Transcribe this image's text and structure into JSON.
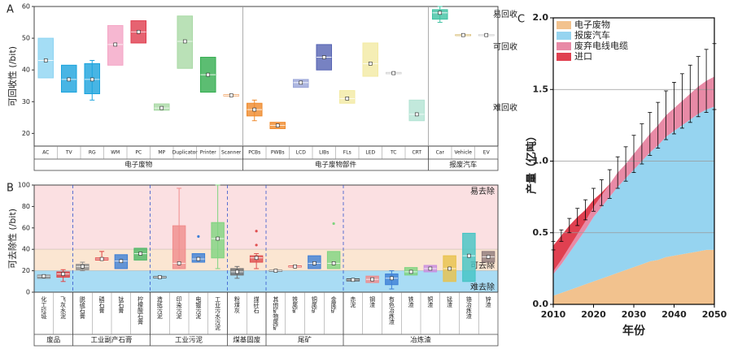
{
  "chart_data": [
    {
      "type": "box",
      "panel": "A",
      "y_label": "可回收性 (/bit)",
      "ylim": [
        16,
        60
      ],
      "yticks": [
        20,
        30,
        40,
        50,
        60
      ],
      "zone_labels": [
        "易回收",
        "可回收",
        "难回收"
      ],
      "groups": [
        {
          "name": "电子废物",
          "boxes": [
            {
              "label": "AC",
              "q1": 37.5,
              "q3": 50,
              "median": 43,
              "color": "#8dd4f2"
            },
            {
              "label": "TV",
              "q1": 33,
              "q3": 41.5,
              "median": 37,
              "color": "#1aa3dd"
            },
            {
              "label": "RG",
              "q1": 32.5,
              "q3": 42,
              "median": 37,
              "whislo": 30.5,
              "whishi": 43,
              "color": "#1aa3dd"
            },
            {
              "label": "WM",
              "q1": 41.5,
              "q3": 54,
              "median": 48,
              "color": "#f4a5c6"
            },
            {
              "label": "PC",
              "q1": 48.5,
              "q3": 55.5,
              "median": 52,
              "color": "#e03c4e"
            },
            {
              "label": "MP",
              "q1": 27.3,
              "q3": 29.3,
              "median": 28,
              "color": "#a9d9a5"
            },
            {
              "label": "Duplicator",
              "q1": 40.5,
              "q3": 57,
              "median": 49,
              "color": "#a9d9a5"
            },
            {
              "label": "Printer",
              "q1": 33,
              "q3": 44,
              "median": 38.5,
              "color": "#33ad4f"
            },
            {
              "label": "Scanner",
              "q1": 31.8,
              "q3": 32.2,
              "median": 32,
              "color": "#f2a76a"
            }
          ]
        },
        {
          "name": "电子废物部件",
          "boxes": [
            {
              "label": "PCBs",
              "q1": 25.5,
              "q3": 29.5,
              "median": 27.5,
              "whislo": 24,
              "whishi": 30.5,
              "color": "#ef8a2c"
            },
            {
              "label": "PWBs",
              "q1": 21.5,
              "q3": 23.5,
              "median": 22.5,
              "color": "#ef8a2c"
            },
            {
              "label": "LCD",
              "q1": 34.5,
              "q3": 37,
              "median": 36,
              "color": "#9aa5d8"
            },
            {
              "label": "LIBs",
              "q1": 40,
              "q3": 48,
              "median": 44,
              "color": "#5563b3"
            },
            {
              "label": "FLs",
              "q1": 29.5,
              "q3": 33.5,
              "median": 31,
              "color": "#f3eaa2"
            },
            {
              "label": "LED",
              "q1": 38,
              "q3": 48.5,
              "median": 42,
              "color": "#f3eaa2"
            },
            {
              "label": "TC",
              "q1": 38.8,
              "q3": 39.2,
              "median": 39,
              "color": "#cccccc"
            },
            {
              "label": "CRT",
              "q1": 24,
              "q3": 30.5,
              "median": 26,
              "color": "#b3e3d3"
            }
          ]
        },
        {
          "name": "报废汽车",
          "boxes": [
            {
              "label": "Car",
              "q1": 56,
              "q3": 59,
              "median": 58,
              "whislo": 55,
              "whishi": 60,
              "color": "#3ec2a2"
            },
            {
              "label": "Vehicle",
              "q1": 50.9,
              "q3": 51.1,
              "median": 51,
              "color": "#c9a13d"
            },
            {
              "label": "EV",
              "q1": 50.9,
              "q3": 51.1,
              "median": 51,
              "color": "#bbbbbb"
            }
          ]
        }
      ]
    },
    {
      "type": "box",
      "panel": "B",
      "y_label": "可去除性 (/bit)",
      "ylim": [
        0,
        100
      ],
      "yticks": [
        0,
        20,
        40,
        60,
        80,
        100
      ],
      "zones": [
        {
          "label": "易去除",
          "from": 40,
          "to": 100,
          "color": "#fbe0e2"
        },
        {
          "label": "可去除",
          "from": 20,
          "to": 40,
          "color": "#fbe6d2"
        },
        {
          "label": "难去除",
          "from": 0,
          "to": 20,
          "color": "#a9dcf4"
        }
      ],
      "groups": [
        {
          "name": "废品",
          "boxes": [
            {
              "label": "化工垃圾",
              "q1": 13,
              "q3": 16,
              "median": 15,
              "color": "#8c8c8c"
            },
            {
              "label": "飞灰水泥",
              "q1": 14,
              "q3": 19,
              "median": 17,
              "whislo": 10,
              "whishi": 21,
              "color": "#e04444"
            }
          ]
        },
        {
          "name": "工业副产石膏",
          "boxes": [
            {
              "label": "脱硫石膏",
              "q1": 21,
              "q3": 26,
              "median": 24,
              "whislo": 20,
              "whishi": 28,
              "color": "#8c8c8c"
            },
            {
              "label": "磷石膏",
              "q1": 30,
              "q3": 32,
              "median": 31,
              "whislo": 30,
              "whishi": 38,
              "color": "#e04444"
            },
            {
              "label": "钛石膏",
              "q1": 22,
              "q3": 35,
              "median": 29,
              "color": "#3d7fd6"
            },
            {
              "label": "柠檬酸石膏",
              "q1": 30,
              "q3": 41,
              "median": 36,
              "color": "#4cb865"
            }
          ]
        },
        {
          "name": "工业污泥",
          "boxes": [
            {
              "label": "造纸污泥",
              "q1": 13.5,
              "q3": 14.5,
              "median": 14,
              "color": "#404040"
            },
            {
              "label": "印染污泥",
              "q1": 22,
              "q3": 62,
              "median": 27,
              "whislo": 22,
              "whishi": 97,
              "color": "#f08c8c"
            },
            {
              "label": "电镀污泥",
              "q1": 28,
              "q3": 36,
              "median": 31,
              "outliers": [
                52
              ],
              "color": "#3d7fd6"
            },
            {
              "label": "工业污水污泥",
              "q1": 32,
              "q3": 65,
              "median": 50,
              "whislo": 22,
              "whishi": 100,
              "color": "#7fd47f"
            }
          ]
        },
        {
          "name": "煤基固废",
          "boxes": [
            {
              "label": "粉煤灰",
              "q1": 16,
              "q3": 22,
              "median": 19,
              "whislo": 13,
              "whishi": 24,
              "color": "#707070"
            },
            {
              "label": "煤矸石",
              "q1": 28,
              "q3": 34,
              "median": 32,
              "whislo": 22,
              "whishi": 36,
              "outliers": [
                44,
                57
              ],
              "color": "#e05050"
            }
          ]
        },
        {
          "name": "尾矿",
          "boxes": [
            {
              "label": "其他矿物尾矿",
              "q1": 19.5,
              "q3": 20.5,
              "median": 20,
              "color": "#707070"
            },
            {
              "label": "铁尾矿",
              "q1": 23.5,
              "q3": 24.5,
              "median": 24,
              "color": "#e04444"
            },
            {
              "label": "铜尾矿",
              "q1": 22,
              "q3": 34,
              "median": 27,
              "color": "#3d7fd6"
            },
            {
              "label": "金尾矿",
              "q1": 22,
              "q3": 38,
              "median": 27,
              "outliers": [
                64
              ],
              "color": "#7fd47f"
            }
          ]
        },
        {
          "name": "冶炼渣",
          "boxes": [
            {
              "label": "赤泥",
              "q1": 10.5,
              "q3": 12.5,
              "median": 11.5,
              "color": "#505050"
            },
            {
              "label": "钢渣",
              "q1": 9,
              "q3": 15,
              "median": 12,
              "color": "#f08c8c"
            },
            {
              "label": "有色冶炼渣",
              "q1": 7,
              "q3": 17,
              "median": 13,
              "whislo": 3,
              "whishi": 20,
              "color": "#3d7fd6"
            },
            {
              "label": "铁渣",
              "q1": 16,
              "q3": 23,
              "median": 19,
              "color": "#7fd47f"
            },
            {
              "label": "铜渣",
              "q1": 19,
              "q3": 25,
              "median": 22,
              "color": "#c98de0"
            },
            {
              "label": "锰渣",
              "q1": 10,
              "q3": 34,
              "median": 22,
              "color": "#e8c24a"
            },
            {
              "label": "铬冶炼渣",
              "q1": 10,
              "q3": 55,
              "median": 34,
              "color": "#42c4c4"
            },
            {
              "label": "锌渣",
              "q1": 28,
              "q3": 38,
              "median": 33,
              "color": "#8f7a7a"
            }
          ]
        }
      ]
    },
    {
      "type": "stacked_area",
      "panel": "C",
      "x_label": "年份",
      "y_label": "产量（亿吨）",
      "x": [
        2010,
        2012,
        2014,
        2016,
        2018,
        2020,
        2022,
        2024,
        2026,
        2028,
        2030,
        2032,
        2034,
        2036,
        2038,
        2040,
        2042,
        2044,
        2046,
        2048,
        2050
      ],
      "xlim": [
        2010,
        2050
      ],
      "xticks": [
        2010,
        2020,
        2030,
        2040,
        2050
      ],
      "ylim": [
        0,
        2
      ],
      "yticks": [
        {
          "value": 0,
          "label": "0.0"
        },
        0.5,
        {
          "value": 1,
          "label": "1.0"
        },
        1.5,
        {
          "value": 2,
          "label": "2.0"
        }
      ],
      "grid": true,
      "legend": "upper left",
      "series": [
        {
          "name": "电子废物",
          "color": "#f2c28e",
          "values": [
            0.06,
            0.08,
            0.1,
            0.12,
            0.14,
            0.16,
            0.18,
            0.2,
            0.22,
            0.24,
            0.26,
            0.28,
            0.3,
            0.31,
            0.33,
            0.34,
            0.35,
            0.36,
            0.37,
            0.38,
            0.38
          ]
        },
        {
          "name": "报废汽车",
          "color": "#96d4f0",
          "values": [
            0.15,
            0.2,
            0.26,
            0.32,
            0.38,
            0.45,
            0.5,
            0.55,
            0.6,
            0.64,
            0.68,
            0.72,
            0.76,
            0.8,
            0.84,
            0.87,
            0.9,
            0.93,
            0.96,
            0.98,
            1.0
          ]
        },
        {
          "name": "废弃电线电缆",
          "color": "#e88aa6",
          "values": [
            0.02,
            0.03,
            0.04,
            0.05,
            0.06,
            0.07,
            0.08,
            0.09,
            0.1,
            0.1,
            0.11,
            0.12,
            0.13,
            0.14,
            0.15,
            0.16,
            0.17,
            0.18,
            0.19,
            0.2,
            0.21
          ]
        },
        {
          "name": "进口",
          "color": "#e04050",
          "values": [
            0.18,
            0.17,
            0.15,
            0.12,
            0.08,
            0.05,
            0.02,
            0,
            0,
            0,
            0,
            0,
            0,
            0,
            0,
            0,
            0,
            0,
            0,
            0,
            0
          ]
        }
      ],
      "error": [
        0.03,
        0.04,
        0.05,
        0.06,
        0.07,
        0.08,
        0.09,
        0.1,
        0.11,
        0.12,
        0.13,
        0.14,
        0.15,
        0.16,
        0.17,
        0.18,
        0.19,
        0.2,
        0.21,
        0.22,
        0.23
      ]
    }
  ]
}
